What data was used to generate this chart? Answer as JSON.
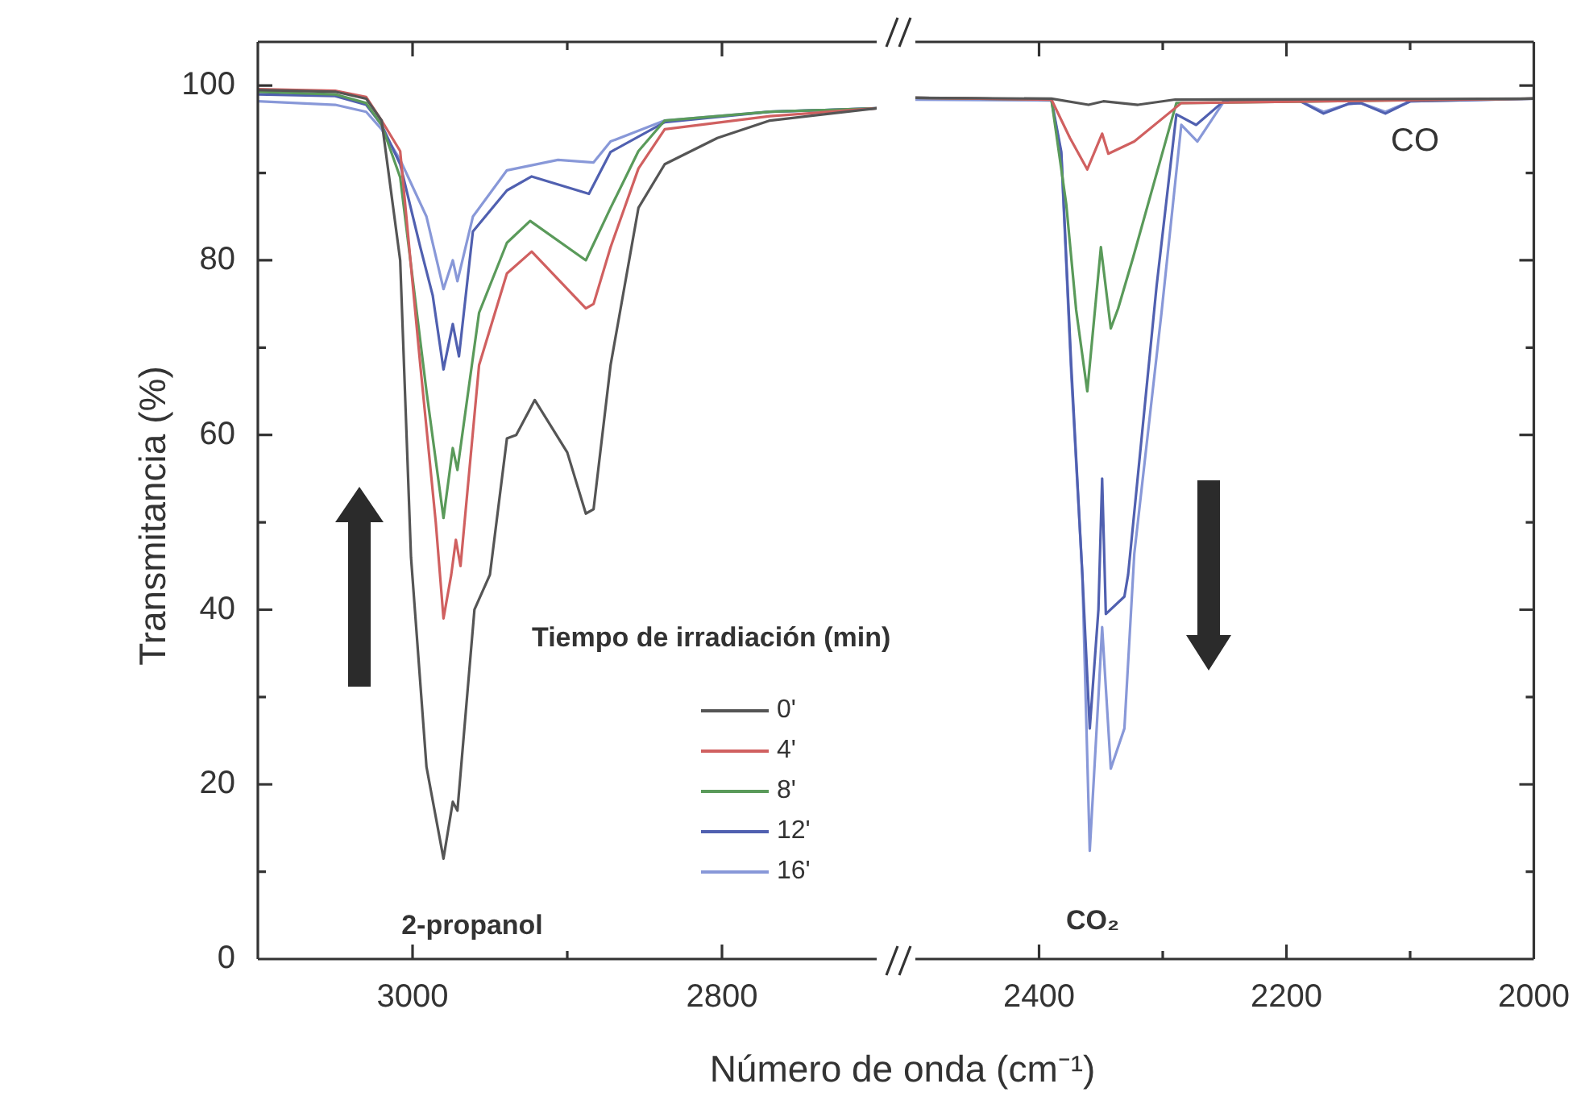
{
  "chart_data": [
    {
      "type": "line",
      "ylabel": "Transmitancia (%)",
      "xlabel": "Número de onda (cm⁻¹)",
      "legend_title": "Tiempo de irradiación (min)",
      "legend": "bottom",
      "grid": false,
      "marker": "none",
      "xlim": [
        3100,
        2700
      ],
      "xticks": [
        3000,
        {
          "value": 2900,
          "label": null
        },
        2800
      ],
      "ylim": [
        0,
        105
      ],
      "yticks": [
        0,
        {
          "value": 10,
          "label": null
        },
        20,
        {
          "value": 30,
          "label": null
        },
        40,
        {
          "value": 50,
          "label": null
        },
        60,
        {
          "value": 70,
          "label": null
        },
        80,
        {
          "value": 90,
          "label": null
        },
        100
      ],
      "annotations": [
        "2-propanol"
      ],
      "series": [
        {
          "name": "0'",
          "color": "#555555",
          "x": [
            3100,
            3050,
            3030,
            3020,
            3008,
            3001,
            2991,
            2980,
            2974,
            2971,
            2960,
            2950,
            2939,
            2933,
            2921,
            2900,
            2888,
            2883,
            2872,
            2854,
            2837,
            2803,
            2769,
            2700
          ],
          "values": [
            99.5,
            99.3,
            98.5,
            96,
            80,
            46,
            22,
            11.5,
            18,
            17,
            40,
            44,
            59.6,
            60,
            64,
            58,
            51,
            51.5,
            68,
            86,
            91,
            94,
            96,
            97.4
          ]
        },
        {
          "name": "4'",
          "color": "#d06060",
          "x": [
            3100,
            3050,
            3030,
            3020,
            3008,
            2995,
            2985,
            2980,
            2975,
            2972,
            2969,
            2957,
            2939,
            2923,
            2888,
            2883,
            2872,
            2854,
            2837,
            2769,
            2700
          ],
          "values": [
            99.6,
            99.4,
            98.7,
            96,
            92.5,
            68,
            50,
            39,
            44,
            48,
            45,
            68,
            78.5,
            81,
            74.5,
            75,
            81.5,
            90.5,
            95,
            96.5,
            97.4
          ]
        },
        {
          "name": "8'",
          "color": "#5a9a5a",
          "x": [
            3100,
            3050,
            3030,
            3020,
            3008,
            2991,
            2980,
            2974,
            2971,
            2957,
            2939,
            2924,
            2888,
            2872,
            2854,
            2837,
            2769,
            2700
          ],
          "values": [
            99.3,
            99,
            98,
            95.5,
            89.5,
            65,
            50.5,
            58.5,
            56,
            74,
            82,
            84.5,
            80,
            86,
            92.5,
            96,
            97,
            97.4
          ]
        },
        {
          "name": "12'",
          "color": "#5060b0",
          "x": [
            3100,
            3050,
            3030,
            3020,
            3008,
            2995,
            2987,
            2980,
            2974,
            2970,
            2961,
            2939,
            2923,
            2886,
            2872,
            2837,
            2769,
            2700
          ],
          "values": [
            99,
            98.8,
            97.8,
            95.5,
            91,
            81.5,
            76,
            67.5,
            72.7,
            69,
            83.3,
            88,
            89.6,
            87.6,
            92.4,
            95.8,
            97,
            97.4
          ]
        },
        {
          "name": "16'",
          "color": "#8898d8",
          "x": [
            3100,
            3050,
            3030,
            3020,
            3008,
            2991,
            2980,
            2974,
            2971,
            2961,
            2939,
            2906,
            2883,
            2872,
            2837,
            2769,
            2700
          ],
          "values": [
            98.2,
            97.8,
            97,
            95,
            91.5,
            85,
            76.7,
            80,
            77.6,
            85,
            90.3,
            91.5,
            91.2,
            93.6,
            96,
            97,
            97.4
          ]
        }
      ]
    },
    {
      "type": "line",
      "grid": false,
      "marker": "none",
      "tick_labels": "x",
      "xlim": [
        2500,
        2000
      ],
      "xticks": [
        2400,
        {
          "value": 2300,
          "label": null
        },
        2200,
        {
          "value": 2100,
          "label": null
        },
        2000
      ],
      "ylim": [
        0,
        105
      ],
      "yticks": [
        0,
        {
          "value": 10,
          "label": null
        },
        20,
        {
          "value": 30,
          "label": null
        },
        40,
        {
          "value": 50,
          "label": null
        },
        60,
        {
          "value": 70,
          "label": null
        },
        80,
        {
          "value": 90,
          "label": null
        },
        100
      ],
      "annotations": [
        "CO₂",
        "CO"
      ],
      "series": [
        {
          "color": "#555555",
          "x": [
            2500,
            2390,
            2360,
            2348,
            2320,
            2290,
            2000
          ],
          "values": [
            98.6,
            98.5,
            97.8,
            98.2,
            97.8,
            98.4,
            98.5
          ]
        },
        {
          "color": "#d06060",
          "x": [
            2500,
            2390,
            2375,
            2361,
            2349,
            2344,
            2323,
            2285,
            2000
          ],
          "values": [
            98.6,
            98.4,
            94,
            90.4,
            94.5,
            92.2,
            93.6,
            98,
            98.5
          ]
        },
        {
          "color": "#5a9a5a",
          "x": [
            2500,
            2390,
            2378,
            2370,
            2361,
            2350,
            2342,
            2336,
            2324,
            2289,
            2000
          ],
          "values": [
            98.6,
            98.4,
            86.4,
            74.3,
            65,
            81.5,
            72.2,
            74.5,
            80.3,
            98,
            98.5
          ]
        },
        {
          "color": "#5060b0",
          "x": [
            2500,
            2390,
            2382,
            2374,
            2365,
            2359,
            2352,
            2349,
            2346,
            2331,
            2328,
            2305,
            2289,
            2273,
            2250,
            2190,
            2170,
            2150,
            2140,
            2120,
            2100,
            2000
          ],
          "values": [
            98.6,
            98.4,
            92.4,
            68,
            44,
            26.4,
            40,
            55,
            39.5,
            41.5,
            44,
            77,
            96.7,
            95.5,
            98.3,
            98.3,
            96.8,
            97.9,
            98,
            96.8,
            98.2,
            98.5
          ]
        },
        {
          "color": "#8898d8",
          "x": [
            2500,
            2390,
            2382,
            2374,
            2365,
            2359,
            2352,
            2349,
            2342,
            2331,
            2323,
            2301,
            2285,
            2272,
            2250,
            2190,
            2170,
            2150,
            2140,
            2120,
            2100,
            2000
          ],
          "values": [
            98.4,
            98.3,
            92,
            67,
            44,
            12.4,
            30,
            38,
            21.8,
            26.4,
            46.4,
            74,
            95.5,
            93.6,
            98.3,
            98.3,
            97,
            97.9,
            98,
            97,
            98.2,
            98.5
          ]
        }
      ]
    }
  ]
}
